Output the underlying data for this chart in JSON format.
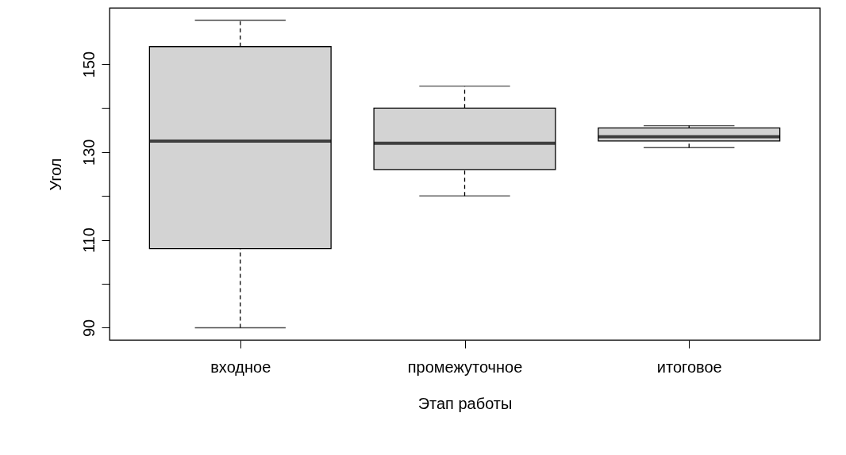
{
  "chart_data": {
    "type": "box",
    "xlabel": "Этап работы",
    "ylabel": "Угол",
    "categories": [
      "входное",
      "промежуточное",
      "итоговое"
    ],
    "color": "#d3d3d3",
    "boxes": [
      {
        "low": 90,
        "q1": 108,
        "median": 132.5,
        "q3": 154,
        "high": 160
      },
      {
        "low": 120,
        "q1": 126,
        "median": 132,
        "q3": 140,
        "high": 145
      },
      {
        "low": 131,
        "q1": 132.5,
        "median": 133.5,
        "q3": 135.5,
        "high": 136
      }
    ],
    "ylim": [
      87.2,
      162.8
    ],
    "yticks": [
      90,
      {
        "value": 100,
        "label": null
      },
      110,
      {
        "value": 120,
        "label": null
      },
      130,
      {
        "value": 140,
        "label": null
      },
      150
    ],
    "grid": false
  }
}
